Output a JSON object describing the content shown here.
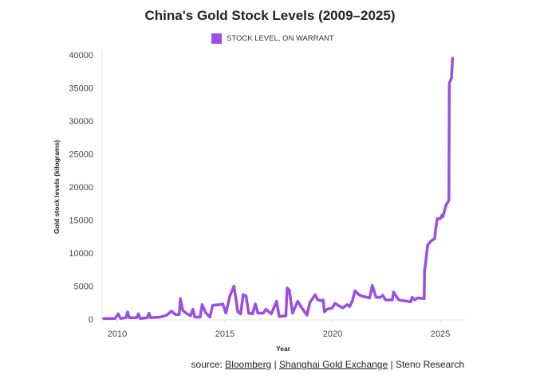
{
  "chart_data": {
    "type": "line",
    "title": "China's Gold Stock Levels (2009–2025)",
    "xlabel": "Year",
    "ylabel": "Gold stock levels (kilograms)",
    "xlim": [
      2009.3,
      2026.1
    ],
    "ylim": [
      0,
      40000
    ],
    "x_ticks": [
      2010,
      2015,
      2020,
      2025
    ],
    "y_ticks": [
      0,
      5000,
      10000,
      15000,
      20000,
      25000,
      30000,
      35000,
      40000
    ],
    "grid": false,
    "legend_position": "top-center",
    "series": [
      {
        "name": "STOCK LEVEL, ON WARRANT",
        "color": "#9b4fe0",
        "x": [
          2009.37,
          2009.9,
          2010.05,
          2010.15,
          2010.4,
          2010.48,
          2010.56,
          2010.9,
          2010.98,
          2011.06,
          2011.4,
          2011.47,
          2011.55,
          2012.0,
          2012.3,
          2012.52,
          2012.7,
          2012.88,
          2012.93,
          2013.05,
          2013.2,
          2013.4,
          2013.51,
          2013.6,
          2013.85,
          2013.94,
          2014.1,
          2014.3,
          2014.43,
          2014.8,
          2014.9,
          2015.05,
          2015.23,
          2015.42,
          2015.6,
          2015.73,
          2015.85,
          2015.98,
          2016.1,
          2016.28,
          2016.41,
          2016.53,
          2016.78,
          2016.9,
          2017.15,
          2017.4,
          2017.52,
          2017.83,
          2017.89,
          2017.99,
          2018.14,
          2018.38,
          2018.57,
          2018.81,
          2018.94,
          2019.19,
          2019.31,
          2019.49,
          2019.56,
          2019.62,
          2019.74,
          2019.99,
          2020.11,
          2020.3,
          2020.48,
          2020.67,
          2020.79,
          2020.91,
          2021.04,
          2021.22,
          2021.35,
          2021.72,
          2021.84,
          2022.02,
          2022.21,
          2022.33,
          2022.46,
          2022.77,
          2022.83,
          2023.07,
          2023.63,
          2023.69,
          2023.81,
          2023.94,
          2024.25,
          2024.27,
          2024.3,
          2024.41,
          2024.56,
          2024.74,
          2024.78,
          2024.86,
          2025.0,
          2025.07,
          2025.12,
          2025.26,
          2025.4,
          2025.42,
          2025.52,
          2025.57
        ],
        "y": [
          100,
          100,
          800,
          100,
          200,
          1100,
          200,
          200,
          800,
          100,
          200,
          900,
          200,
          300,
          600,
          1200,
          700,
          700,
          3100,
          1300,
          900,
          500,
          1500,
          300,
          300,
          2200,
          1000,
          300,
          2100,
          2200,
          2300,
          900,
          3500,
          5000,
          1100,
          800,
          3700,
          3500,
          900,
          800,
          2300,
          900,
          900,
          1500,
          800,
          2700,
          400,
          500,
          4700,
          4400,
          900,
          2700,
          1700,
          600,
          2500,
          3700,
          2900,
          2800,
          2900,
          1100,
          1500,
          1700,
          2400,
          2000,
          1700,
          2200,
          1900,
          2700,
          4300,
          3700,
          3500,
          3200,
          5100,
          3300,
          3300,
          3600,
          2900,
          2900,
          4100,
          2900,
          2600,
          3300,
          2900,
          3200,
          3100,
          7500,
          8000,
          11200,
          11800,
          12200,
          13600,
          15200,
          15200,
          15700,
          15500,
          17200,
          18000,
          35700,
          36500,
          39500
        ]
      }
    ]
  },
  "source": {
    "prefix": "source: ",
    "links": [
      "Bloomberg",
      "Shanghai Gold Exchange"
    ],
    "separator": " | ",
    "suffix": "Steno Research"
  }
}
